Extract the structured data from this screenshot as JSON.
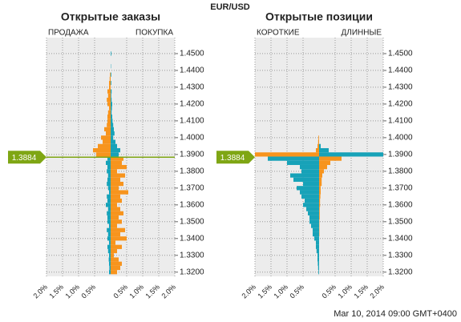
{
  "title": "EUR/USD",
  "footer": "Mar 10, 2014 09:00 GMT+0400",
  "chart_data": [
    {
      "type": "hbar",
      "title": "Открытые заказы",
      "left_label": "ПРОДАЖА",
      "right_label": "ПОКУПКА",
      "current": 1.3884,
      "price_line": true,
      "ylim": [
        1.3175,
        1.4595
      ],
      "yticks": [
        {
          "value": 1.32,
          "label": "1.3200"
        },
        {
          "value": 1.33,
          "label": "1.3300"
        },
        {
          "value": 1.34,
          "label": "1.3400"
        },
        {
          "value": 1.35,
          "label": "1.3500"
        },
        {
          "value": 1.36,
          "label": "1.3600"
        },
        {
          "value": 1.37,
          "label": "1.3700"
        },
        {
          "value": 1.38,
          "label": "1.3800"
        },
        {
          "value": 1.39,
          "label": "1.3900"
        },
        {
          "value": 1.4,
          "label": "1.4000"
        },
        {
          "value": 1.41,
          "label": "1.4100"
        },
        {
          "value": 1.42,
          "label": "1.4200"
        },
        {
          "value": 1.43,
          "label": "1.4300"
        },
        {
          "value": 1.44,
          "label": "1.4400"
        },
        {
          "value": 1.45,
          "label": "1.4500"
        }
      ],
      "xlim": [
        -2,
        2
      ],
      "xticks": [
        {
          "value": -2,
          "label": "2.0%"
        },
        {
          "value": -1.5,
          "label": "1.5%"
        },
        {
          "value": -1,
          "label": "1.0%"
        },
        {
          "value": -0.5,
          "label": "0.5%"
        },
        {
          "value": 0.5,
          "label": "0.5%"
        },
        {
          "value": 1,
          "label": "1.0%"
        },
        {
          "value": 1.5,
          "label": "1.5%"
        },
        {
          "value": 2,
          "label": "2.0%"
        }
      ],
      "grid": true,
      "y": [
        1.45,
        1.4475,
        1.445,
        1.4425,
        1.44,
        1.4375,
        1.435,
        1.4325,
        1.43,
        1.4275,
        1.425,
        1.4225,
        1.42,
        1.4175,
        1.415,
        1.4125,
        1.41,
        1.4075,
        1.405,
        1.4025,
        1.4,
        1.3975,
        1.395,
        1.3925,
        1.39,
        1.3875,
        1.385,
        1.3825,
        1.38,
        1.3775,
        1.375,
        1.3725,
        1.37,
        1.3675,
        1.365,
        1.3625,
        1.36,
        1.3575,
        1.355,
        1.3525,
        1.35,
        1.3475,
        1.345,
        1.3425,
        1.34,
        1.3375,
        1.335,
        1.3325,
        1.33,
        1.3275,
        1.325,
        1.3225,
        1.32
      ],
      "series": [
        {
          "color_above": "#f7941d",
          "color_below": "#17a2b8",
          "values": [
            0,
            0,
            0,
            0,
            0,
            -0.02,
            -0.03,
            -0.05,
            -0.05,
            -0.1,
            -0.08,
            -0.12,
            -0.1,
            -0.05,
            -0.08,
            -0.1,
            -0.1,
            -0.12,
            -0.2,
            -0.15,
            -0.3,
            -0.25,
            -0.4,
            -0.55,
            -0.45,
            -0.1,
            -0.15,
            -0.1,
            -0.12,
            -0.08,
            -0.1,
            -0.12,
            -0.08,
            -0.05,
            -0.12,
            -0.1,
            -0.15,
            -0.08,
            -0.12,
            -0.1,
            -0.1,
            -0.05,
            -0.12,
            -0.08,
            -0.1,
            -0.05,
            -0.1,
            -0.08,
            -0.05,
            -0.06,
            -0.05,
            -0.04,
            -0.05
          ]
        },
        {
          "color_above": "#17a2b8",
          "color_below": "#f7941d",
          "values": [
            0.02,
            0,
            0,
            0.01,
            0,
            0.02,
            0,
            0.02,
            0,
            0.03,
            0.02,
            0.03,
            0.05,
            0.04,
            0.03,
            0.05,
            0.06,
            0.08,
            0.1,
            0.12,
            0.08,
            0.15,
            0.2,
            0.3,
            0.25,
            0.4,
            0.35,
            0.5,
            0.2,
            0.45,
            0.3,
            0.4,
            0.25,
            0.55,
            0.3,
            0.35,
            0.2,
            0.3,
            0.4,
            0.25,
            0.35,
            0.2,
            0.45,
            0.3,
            0.5,
            0.15,
            0.35,
            0.2,
            0.1,
            0.25,
            0.35,
            0.3,
            0.2
          ]
        }
      ]
    },
    {
      "type": "hbar",
      "title": "Открытые позиции",
      "left_label": "КОРОТКИЕ",
      "right_label": "ДЛИННЫЕ",
      "current": 1.3884,
      "price_line": false,
      "ylim": [
        1.3175,
        1.4595
      ],
      "yticks": [
        {
          "value": 1.32,
          "label": "1.3200"
        },
        {
          "value": 1.33,
          "label": "1.3300"
        },
        {
          "value": 1.34,
          "label": "1.3400"
        },
        {
          "value": 1.35,
          "label": "1.3500"
        },
        {
          "value": 1.36,
          "label": "1.3600"
        },
        {
          "value": 1.37,
          "label": "1.3700"
        },
        {
          "value": 1.38,
          "label": "1.3800"
        },
        {
          "value": 1.39,
          "label": "1.3900"
        },
        {
          "value": 1.4,
          "label": "1.4000"
        },
        {
          "value": 1.41,
          "label": "1.4100"
        },
        {
          "value": 1.42,
          "label": "1.4200"
        },
        {
          "value": 1.43,
          "label": "1.4300"
        },
        {
          "value": 1.44,
          "label": "1.4400"
        },
        {
          "value": 1.45,
          "label": "1.4500"
        }
      ],
      "xlim": [
        -2,
        2
      ],
      "xticks": [
        {
          "value": -2,
          "label": "2.0%"
        },
        {
          "value": -1.5,
          "label": "1.5%"
        },
        {
          "value": -1,
          "label": "1.0%"
        },
        {
          "value": -0.5,
          "label": "0.5%"
        },
        {
          "value": 0.5,
          "label": "0.5%"
        },
        {
          "value": 1,
          "label": "1.0%"
        },
        {
          "value": 1.5,
          "label": "1.5%"
        },
        {
          "value": 2,
          "label": "2.0%"
        }
      ],
      "grid": true,
      "y": [
        1.45,
        1.4475,
        1.445,
        1.4425,
        1.44,
        1.4375,
        1.435,
        1.4325,
        1.43,
        1.4275,
        1.425,
        1.4225,
        1.42,
        1.4175,
        1.415,
        1.4125,
        1.41,
        1.4075,
        1.405,
        1.4025,
        1.4,
        1.3975,
        1.395,
        1.3925,
        1.39,
        1.3875,
        1.385,
        1.3825,
        1.38,
        1.3775,
        1.375,
        1.3725,
        1.37,
        1.3675,
        1.365,
        1.3625,
        1.36,
        1.3575,
        1.355,
        1.3525,
        1.35,
        1.3475,
        1.345,
        1.3425,
        1.34,
        1.3375,
        1.335,
        1.3325,
        1.33,
        1.3275,
        1.325,
        1.3225,
        1.32
      ],
      "series": [
        {
          "color_above": "#f7941d",
          "color_below": "#17a2b8",
          "values": [
            0,
            0,
            0,
            0,
            0,
            0,
            0,
            0,
            0,
            0,
            0,
            0,
            0,
            0,
            0,
            0,
            0,
            0,
            0,
            0,
            -0.02,
            -0.03,
            -0.05,
            -0.1,
            -2,
            -1.6,
            -1,
            -0.6,
            -0.55,
            -0.9,
            -0.8,
            -0.5,
            -0.7,
            -0.6,
            -0.55,
            -0.45,
            -0.5,
            -0.4,
            -0.35,
            -0.3,
            -0.3,
            -0.25,
            -0.2,
            -0.2,
            -0.15,
            -0.1,
            -0.1,
            -0.08,
            -0.05,
            -0.05,
            -0.04,
            -0.03,
            -0.02
          ]
        },
        {
          "color_above": "#17a2b8",
          "color_below": "#f7941d",
          "values": [
            0,
            0,
            0,
            0,
            0,
            0,
            0,
            0,
            0,
            0,
            0,
            0,
            0,
            0,
            0,
            0,
            0,
            0,
            0,
            0,
            0,
            0,
            0.05,
            0.3,
            2,
            0.7,
            0.35,
            0.25,
            0.15,
            0.1,
            0.08,
            0.08,
            0.05,
            0.05,
            0.04,
            0.03,
            0.03,
            0.02,
            0.02,
            0.02,
            0.01,
            0.01,
            0.01,
            0.01,
            0,
            0,
            0,
            0,
            0,
            0,
            0,
            0,
            0
          ]
        }
      ]
    }
  ]
}
